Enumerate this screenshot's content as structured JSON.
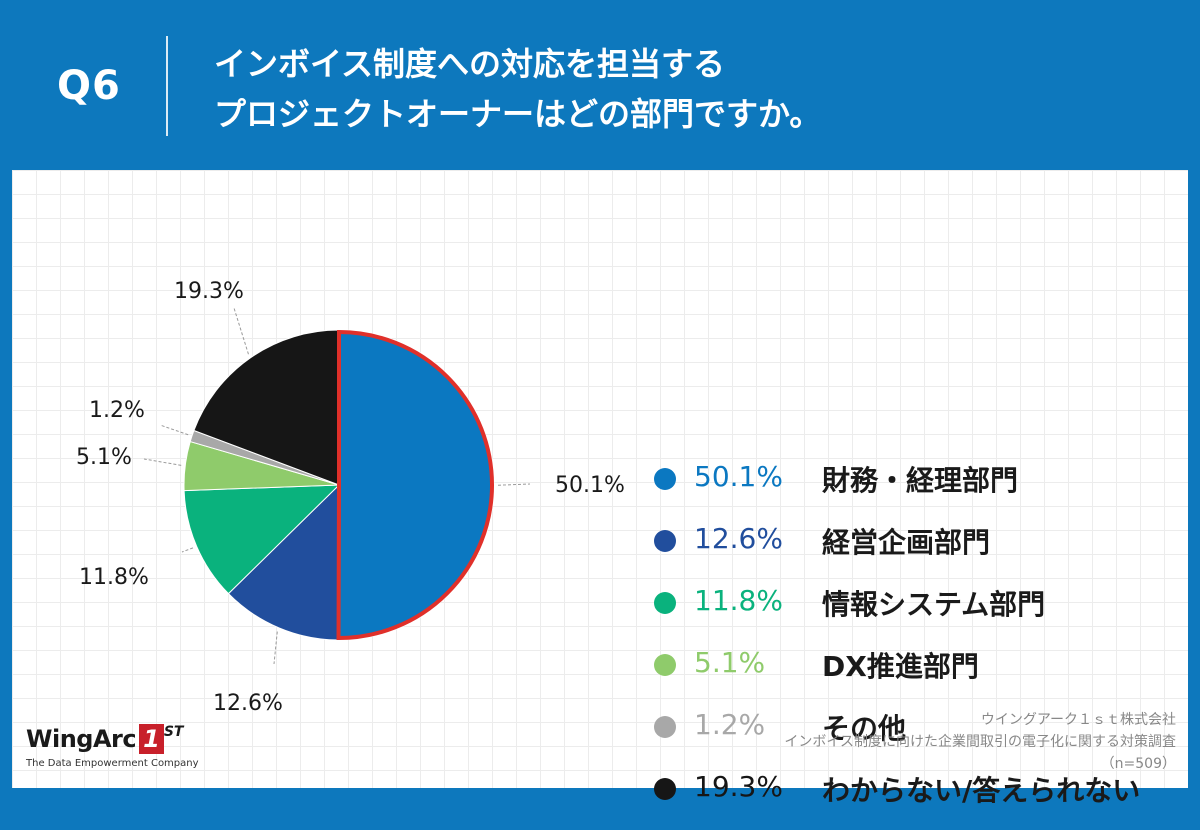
{
  "header": {
    "question": "Q6",
    "title_line1": "インボイス制度への対応を担当する",
    "title_line2": "プロジェクトオーナーはどの部門ですか。"
  },
  "chart_data": {
    "type": "pie",
    "title": "インボイス制度への対応を担当するプロジェクトオーナーはどの部門ですか。",
    "categories": [
      "財務・経理部門",
      "経営企画部門",
      "情報システム部門",
      "DX推進部門",
      "その他",
      "わからない/答えられない"
    ],
    "values": [
      50.1,
      12.6,
      11.8,
      5.1,
      1.2,
      19.3
    ],
    "value_labels": [
      "50.1%",
      "12.6%",
      "11.8%",
      "5.1%",
      "1.2%",
      "19.3%"
    ],
    "colors": [
      "#0b78c1",
      "#214e9d",
      "#0ab27d",
      "#8fcb6b",
      "#a8a8a8",
      "#161616"
    ],
    "legend_text_colors": [
      "#0b78c1",
      "#214e9d",
      "#0ab27d",
      "#8fcb6b",
      "#a8a8a8",
      "#161616"
    ],
    "highlight_index": 0,
    "highlight_color": "#e0302a",
    "start_angle_deg": 0,
    "direction": "clockwise",
    "legend_position": "right"
  },
  "logo": {
    "name": "WingArc",
    "mark": "1",
    "suffix": "ST",
    "tagline": "The Data Empowerment Company"
  },
  "source": {
    "company": "ウイングアーク１ｓｔ株式会社",
    "survey": "インボイス制度に向けた企業間取引の電子化に関する対策調査",
    "sample": "（n=509）"
  }
}
